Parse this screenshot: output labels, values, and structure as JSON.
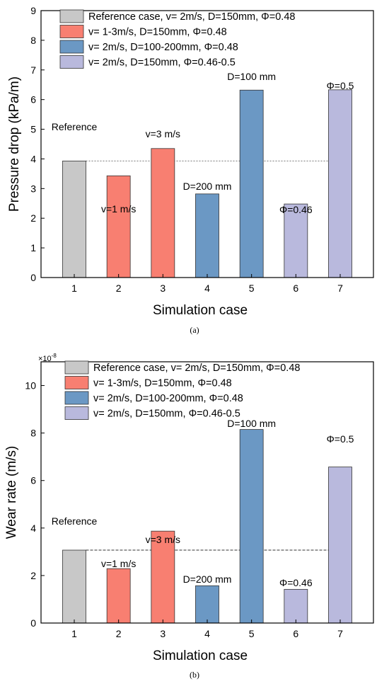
{
  "chart_data": [
    {
      "type": "bar",
      "title": "",
      "xlabel": "Simulation case",
      "ylabel": "Pressure drop (kPa/m)",
      "caption": "(a)",
      "categories": [
        "1",
        "2",
        "3",
        "4",
        "5",
        "6",
        "7"
      ],
      "values": [
        3.93,
        3.43,
        4.35,
        2.82,
        6.32,
        2.48,
        6.33
      ],
      "bar_colors": [
        "#c8c8c8",
        "#f87f71",
        "#f87f71",
        "#6b98c4",
        "#6b98c4",
        "#b9b9dd",
        "#b9b9dd"
      ],
      "ylim": [
        0,
        9
      ],
      "yticks": [
        "0",
        "1",
        "2",
        "3",
        "4",
        "5",
        "6",
        "7",
        "8",
        "9"
      ],
      "reference_line": 3.93,
      "annotations": [
        "Reference",
        "v=1 m/s",
        "v=3 m/s",
        "D=200 mm",
        "D=100 mm",
        "Φ=0.46",
        "Φ=0.5"
      ],
      "legend": [
        {
          "label": "Reference case, v= 2m/s, D=150mm, Φ=0.48",
          "color": "#c8c8c8"
        },
        {
          "label": "v= 1-3m/s, D=150mm, Φ=0.48",
          "color": "#f87f71"
        },
        {
          "label": "v= 2m/s, D=100-200mm, Φ=0.48",
          "color": "#6b98c4"
        },
        {
          "label": "v= 2m/s, D=150mm, Φ=0.46-0.5",
          "color": "#b9b9dd"
        }
      ],
      "legend_position": "top-left",
      "grid": false
    },
    {
      "type": "bar",
      "title": "",
      "xlabel": "Simulation case",
      "ylabel": "Wear rate (m/s)",
      "caption": "(b)",
      "scale_label": "×10",
      "scale_exponent": "-8",
      "categories": [
        "1",
        "2",
        "3",
        "4",
        "5",
        "6",
        "7"
      ],
      "values": [
        3.07,
        2.29,
        3.87,
        1.57,
        8.15,
        1.42,
        6.57
      ],
      "bar_colors": [
        "#c8c8c8",
        "#f87f71",
        "#f87f71",
        "#6b98c4",
        "#6b98c4",
        "#b9b9dd",
        "#b9b9dd"
      ],
      "ylim": [
        0,
        11
      ],
      "yticks": [
        "0",
        "2",
        "4",
        "6",
        "8",
        "10"
      ],
      "reference_line": 3.07,
      "annotations": [
        "Reference",
        "v=1 m/s",
        "v=3 m/s",
        "D=200 mm",
        "D=100 mm",
        "Φ=0.46",
        "Φ=0.5"
      ],
      "legend": [
        {
          "label": "Reference case, v= 2m/s, D=150mm, Φ=0.48",
          "color": "#c8c8c8"
        },
        {
          "label": "v= 1-3m/s, D=150mm, Φ=0.48",
          "color": "#f87f71"
        },
        {
          "label": "v= 2m/s, D=100-200mm, Φ=0.48",
          "color": "#6b98c4"
        },
        {
          "label": "v= 2m/s, D=150mm, Φ=0.46-0.5",
          "color": "#b9b9dd"
        }
      ],
      "legend_position": "top-left",
      "grid": false
    }
  ]
}
